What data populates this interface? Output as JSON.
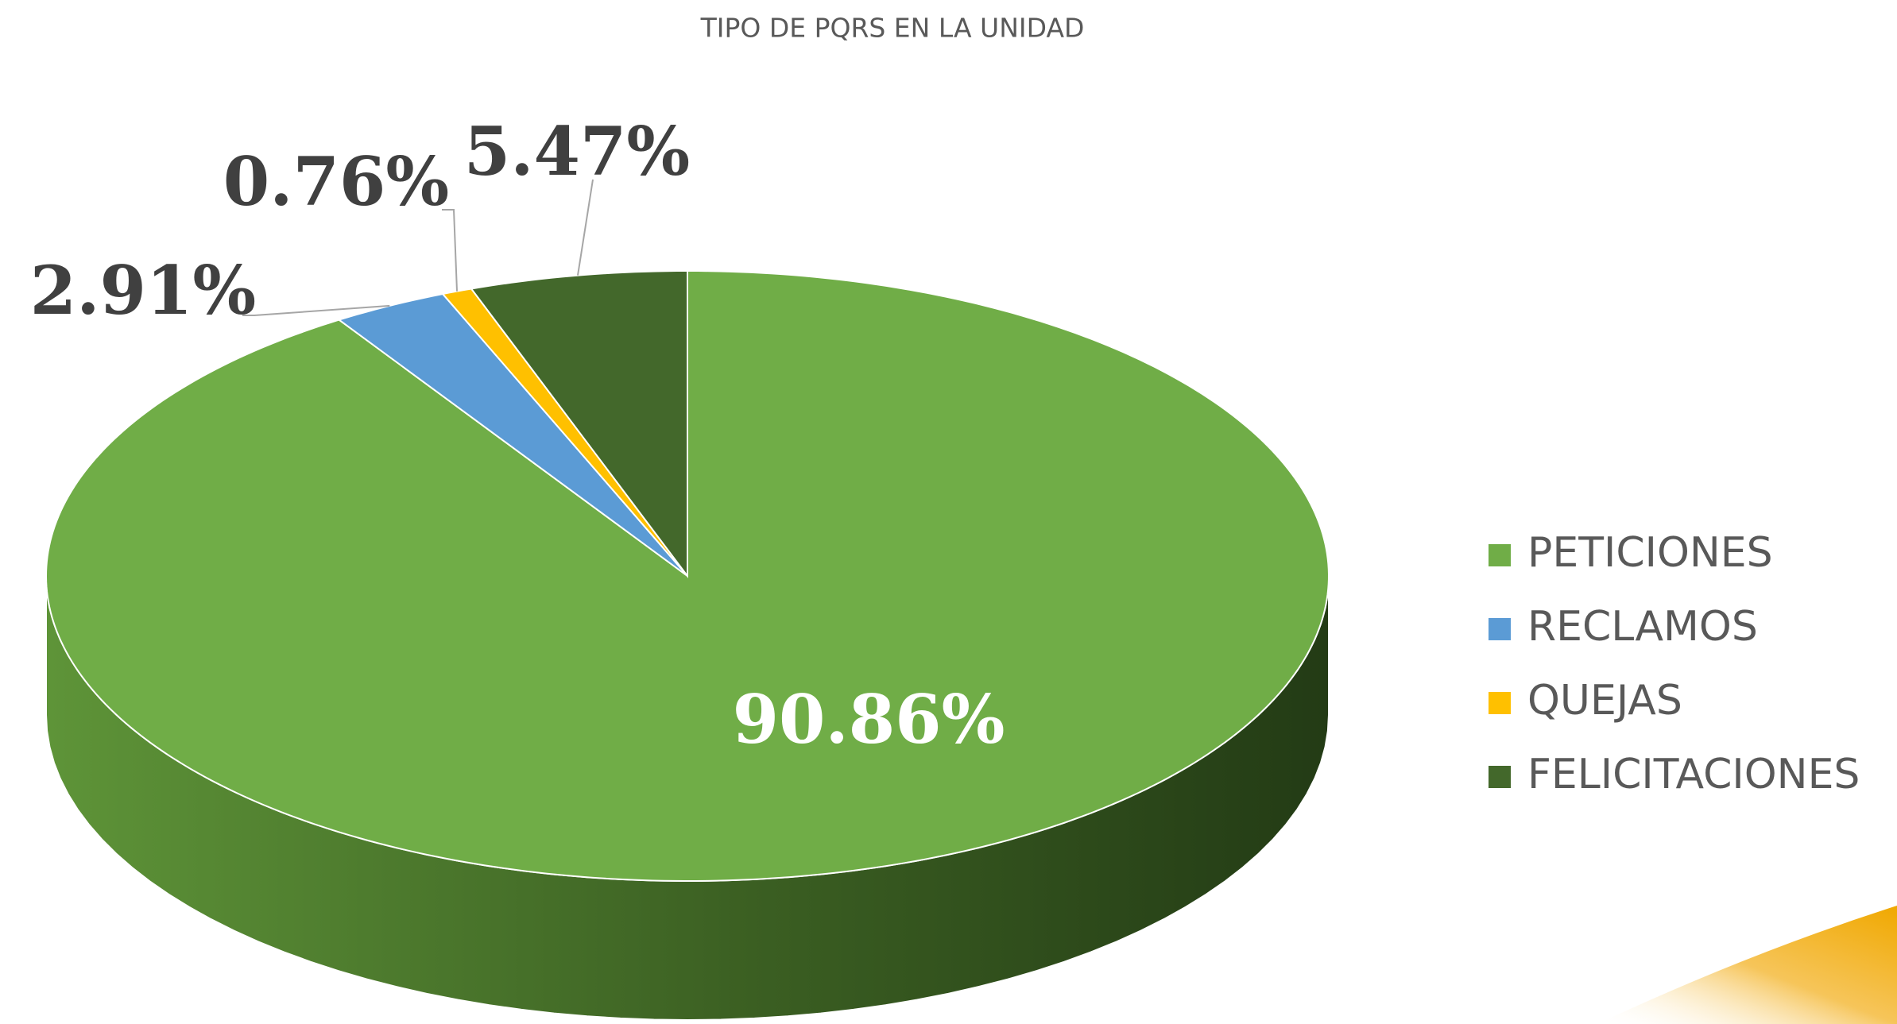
{
  "chart_data": {
    "type": "pie",
    "title": "TIPO DE PQRS EN LA UNIDAD",
    "categories": [
      "PETICIONES",
      "RECLAMOS",
      "QUEJAS",
      "FELICITACIONES"
    ],
    "values": [
      90.86,
      2.91,
      0.76,
      5.47
    ],
    "value_labels": [
      "90.86%",
      "2.91%",
      "0.76%",
      "5.47%"
    ],
    "colors": [
      "#70ad47",
      "#5b9bd5",
      "#ffc000",
      "#43682b"
    ],
    "legend": "right"
  }
}
